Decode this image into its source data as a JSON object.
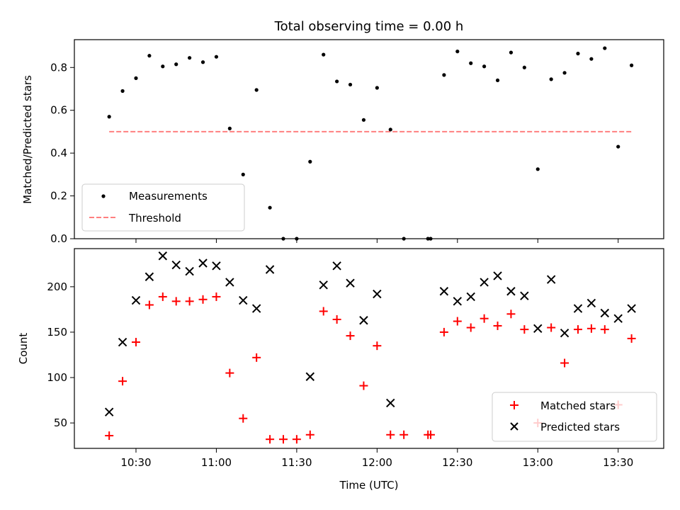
{
  "figure": {
    "title": "Total observing time = 0.00 h",
    "xlabel": "Time (UTC)",
    "x_ticks": [
      "10:30",
      "11:00",
      "11:30",
      "12:00",
      "12:30",
      "13:00",
      "13:30"
    ]
  },
  "chart_data": [
    {
      "type": "scatter",
      "panel": "top",
      "ylabel": "Matched/Predicted stars",
      "ylim": [
        0,
        0.93
      ],
      "yticks": [
        0.0,
        0.2,
        0.4,
        0.6,
        0.8
      ],
      "xlim": [
        "10:07",
        "13:47"
      ],
      "legend_position": "lower-left",
      "series": [
        {
          "name": "Measurements",
          "marker": "dot",
          "color": "#000000",
          "x": [
            "10:20",
            "10:25",
            "10:30",
            "10:35",
            "10:40",
            "10:45",
            "10:50",
            "10:55",
            "11:00",
            "11:05",
            "11:10",
            "11:15",
            "11:20",
            "11:25",
            "11:30",
            "11:35",
            "11:40",
            "11:45",
            "11:50",
            "11:55",
            "12:00",
            "12:05",
            "12:10",
            "12:19",
            "12:20",
            "12:25",
            "12:30",
            "12:35",
            "12:40",
            "12:45",
            "12:50",
            "12:55",
            "13:00",
            "13:05",
            "13:10",
            "13:15",
            "13:20",
            "13:25",
            "13:30",
            "13:35"
          ],
          "y": [
            0.57,
            0.69,
            0.75,
            0.855,
            0.805,
            0.815,
            0.845,
            0.825,
            0.85,
            0.515,
            0.3,
            0.695,
            0.145,
            0.0,
            0.0,
            0.36,
            0.86,
            0.735,
            0.72,
            0.555,
            0.705,
            0.51,
            0.0,
            0.0,
            0.0,
            0.765,
            0.875,
            0.82,
            0.805,
            0.74,
            0.87,
            0.8,
            0.325,
            0.745,
            0.775,
            0.865,
            0.84,
            0.89,
            0.43,
            0.81
          ]
        }
      ],
      "lines": [
        {
          "name": "Threshold",
          "style": "dashed",
          "color": "#ff7f7f",
          "x": [
            "10:20",
            "13:35"
          ],
          "y": [
            0.5,
            0.5
          ]
        }
      ]
    },
    {
      "type": "scatter",
      "panel": "bottom",
      "ylabel": "Count",
      "ylim": [
        22,
        242
      ],
      "yticks": [
        50,
        100,
        150,
        200
      ],
      "xlim": [
        "10:07",
        "13:47"
      ],
      "legend_position": "lower-right",
      "series": [
        {
          "name": "Matched stars",
          "marker": "plus",
          "color": "#ff0000",
          "x": [
            "10:20",
            "10:25",
            "10:30",
            "10:35",
            "10:40",
            "10:45",
            "10:50",
            "10:55",
            "11:00",
            "11:05",
            "11:10",
            "11:15",
            "11:20",
            "11:25",
            "11:30",
            "11:35",
            "11:40",
            "11:45",
            "11:50",
            "11:55",
            "12:00",
            "12:05",
            "12:10",
            "12:19",
            "12:20",
            "12:25",
            "12:30",
            "12:35",
            "12:40",
            "12:45",
            "12:50",
            "12:55",
            "13:00",
            "13:05",
            "13:10",
            "13:15",
            "13:20",
            "13:25",
            "13:30",
            "13:35"
          ],
          "y": [
            36,
            96,
            139,
            180,
            189,
            184,
            184,
            186,
            189,
            105,
            55,
            122,
            32,
            32,
            32,
            37,
            173,
            164,
            146,
            91,
            135,
            37,
            37,
            37,
            37,
            150,
            162,
            155,
            165,
            157,
            170,
            153,
            50,
            155,
            116,
            153,
            154,
            153,
            70,
            143
          ]
        },
        {
          "name": "Predicted stars",
          "marker": "x",
          "color": "#000000",
          "x": [
            "10:20",
            "10:25",
            "10:30",
            "10:35",
            "10:40",
            "10:45",
            "10:50",
            "10:55",
            "11:00",
            "11:05",
            "11:10",
            "11:15",
            "11:20",
            "11:35",
            "11:40",
            "11:45",
            "11:50",
            "11:55",
            "12:00",
            "12:05",
            "12:25",
            "12:30",
            "12:35",
            "12:40",
            "12:45",
            "12:50",
            "12:55",
            "13:00",
            "13:05",
            "13:10",
            "13:15",
            "13:20",
            "13:25",
            "13:30",
            "13:35"
          ],
          "y": [
            62,
            139,
            185,
            211,
            234,
            224,
            217,
            226,
            223,
            205,
            185,
            176,
            219,
            101,
            202,
            223,
            204,
            163,
            192,
            72,
            195,
            184,
            189,
            205,
            212,
            195,
            190,
            154,
            208,
            149,
            176,
            182,
            171,
            165,
            176
          ]
        }
      ]
    }
  ]
}
